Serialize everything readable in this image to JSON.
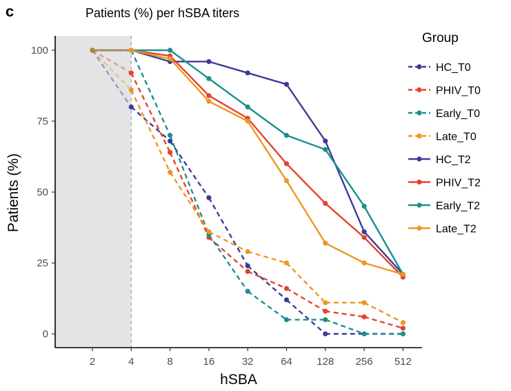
{
  "panel_letter": "c",
  "chart_data": {
    "type": "line",
    "title": "Patients (%) per hSBA titers",
    "xlabel": "hSBA",
    "ylabel": "Patients (%)",
    "categories": [
      "2",
      "4",
      "8",
      "16",
      "32",
      "64",
      "128",
      "256",
      "512"
    ],
    "ylim": [
      0,
      100
    ],
    "yticks": [
      0,
      25,
      50,
      75,
      100
    ],
    "shaded_region": {
      "from": "1",
      "to": "4",
      "color": "#e3e4e5"
    },
    "reference_line": {
      "x": "4",
      "style": "dashed",
      "color": "#aaaaaa"
    },
    "legend": {
      "title": "Group",
      "position": "right"
    },
    "series": [
      {
        "name": "HC_T0",
        "color": "#3a3b98",
        "dashed": true,
        "values": [
          100,
          80,
          68,
          48,
          24,
          12,
          0,
          0,
          0
        ]
      },
      {
        "name": "PHIV_T0",
        "color": "#e2432b",
        "dashed": true,
        "values": [
          100,
          92,
          64,
          34,
          22,
          16,
          8,
          6,
          2
        ]
      },
      {
        "name": "Early_T0",
        "color": "#1a8f8c",
        "dashed": true,
        "values": [
          100,
          100,
          70,
          35,
          15,
          5,
          5,
          0,
          0
        ]
      },
      {
        "name": "Late_T0",
        "color": "#f0951f",
        "dashed": true,
        "values": [
          100,
          86,
          57,
          36,
          29,
          25,
          11,
          11,
          4
        ]
      },
      {
        "name": "HC_T2",
        "color": "#3a3b98",
        "dashed": false,
        "values": [
          100,
          100,
          96,
          96,
          92,
          88,
          68,
          36,
          21
        ]
      },
      {
        "name": "PHIV_T2",
        "color": "#e2432b",
        "dashed": false,
        "values": [
          100,
          100,
          98,
          84,
          76,
          60,
          46,
          34,
          20
        ]
      },
      {
        "name": "Early_T2",
        "color": "#1a8f8c",
        "dashed": false,
        "values": [
          100,
          100,
          100,
          90,
          80,
          70,
          65,
          45,
          21
        ]
      },
      {
        "name": "Late_T2",
        "color": "#f0951f",
        "dashed": false,
        "values": [
          100,
          100,
          97,
          82,
          75,
          54,
          32,
          25,
          21
        ]
      }
    ]
  }
}
